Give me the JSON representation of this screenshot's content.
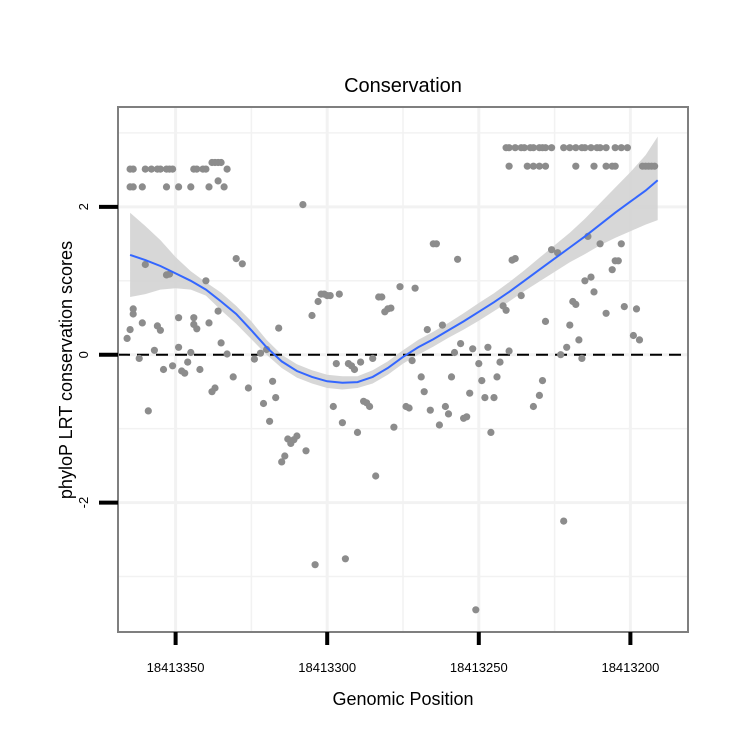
{
  "chart_data": {
    "type": "scatter",
    "title": "Conservation",
    "xlabel": "Genomic Position",
    "ylabel": "phyloP LRT conservation scores",
    "x_reversed": true,
    "xlim": [
      18413369,
      18413181
    ],
    "ylim": [
      -3.75,
      3.35
    ],
    "x_ticks": [
      18413350,
      18413300,
      18413250,
      18413200
    ],
    "x_tick_labels": [
      "18413350",
      "18413300",
      "18413250",
      "18413200"
    ],
    "y_ticks": [
      -2,
      0,
      2
    ],
    "y_tick_labels": [
      "-2",
      "0",
      "2"
    ],
    "grid": true,
    "reference_line": {
      "y": 0,
      "style": "dashed"
    },
    "colors": {
      "points": "#8c8c8c",
      "smooth_line": "#3366ff",
      "confidence_band": "#d3d3d3",
      "grid": "#f2f2f2",
      "panel_border": "#7f7f7f"
    },
    "points": [
      [
        18413365,
        2.27
      ],
      [
        18413365,
        2.51
      ],
      [
        18413364,
        2.27
      ],
      [
        18413364,
        2.51
      ],
      [
        18413361,
        2.27
      ],
      [
        18413360,
        2.51
      ],
      [
        18413358,
        2.51
      ],
      [
        18413356,
        2.51
      ],
      [
        18413355,
        2.51
      ],
      [
        18413353,
        2.51
      ],
      [
        18413352,
        2.51
      ],
      [
        18413351,
        2.51
      ],
      [
        18413353,
        2.27
      ],
      [
        18413349,
        2.27
      ],
      [
        18413345,
        2.27
      ],
      [
        18413344,
        2.51
      ],
      [
        18413343,
        2.51
      ],
      [
        18413341,
        2.51
      ],
      [
        18413340,
        2.51
      ],
      [
        18413339,
        2.27
      ],
      [
        18413338,
        2.6
      ],
      [
        18413337,
        2.6
      ],
      [
        18413336,
        2.6
      ],
      [
        18413335,
        2.6
      ],
      [
        18413333,
        2.51
      ],
      [
        18413336,
        2.35
      ],
      [
        18413334,
        2.27
      ],
      [
        18413366,
        0.22
      ],
      [
        18413365,
        0.34
      ],
      [
        18413364,
        0.55
      ],
      [
        18413364,
        0.62
      ],
      [
        18413362,
        -0.05
      ],
      [
        18413361,
        0.43
      ],
      [
        18413360,
        1.22
      ],
      [
        18413359,
        -0.76
      ],
      [
        18413357,
        0.06
      ],
      [
        18413356,
        0.39
      ],
      [
        18413355,
        0.33
      ],
      [
        18413354,
        -0.2
      ],
      [
        18413353,
        1.08
      ],
      [
        18413352,
        1.09
      ],
      [
        18413351,
        -0.15
      ],
      [
        18413349,
        0.1
      ],
      [
        18413349,
        0.5
      ],
      [
        18413348,
        -0.22
      ],
      [
        18413347,
        -0.25
      ],
      [
        18413346,
        -0.1
      ],
      [
        18413345,
        0.03
      ],
      [
        18413344,
        0.5
      ],
      [
        18413344,
        0.41
      ],
      [
        18413343,
        0.35
      ],
      [
        18413342,
        -0.2
      ],
      [
        18413340,
        1.0
      ],
      [
        18413339,
        0.43
      ],
      [
        18413338,
        -0.5
      ],
      [
        18413337,
        -0.45
      ],
      [
        18413336,
        0.59
      ],
      [
        18413335,
        0.16
      ],
      [
        18413333,
        0.01
      ],
      [
        18413331,
        -0.3
      ],
      [
        18413330,
        1.3
      ],
      [
        18413328,
        1.23
      ],
      [
        18413326,
        -0.45
      ],
      [
        18413324,
        -0.06
      ],
      [
        18413322,
        0.02
      ],
      [
        18413321,
        -0.66
      ],
      [
        18413320,
        0.07
      ],
      [
        18413318,
        -0.36
      ],
      [
        18413319,
        -0.9
      ],
      [
        18413317,
        -0.58
      ],
      [
        18413316,
        0.36
      ],
      [
        18413315,
        -1.45
      ],
      [
        18413314,
        -1.37
      ],
      [
        18413313,
        -1.14
      ],
      [
        18413312,
        -1.2
      ],
      [
        18413311,
        -1.15
      ],
      [
        18413310,
        -1.1
      ],
      [
        18413308,
        2.03
      ],
      [
        18413307,
        -1.3
      ],
      [
        18413305,
        0.53
      ],
      [
        18413304,
        -2.84
      ],
      [
        18413303,
        0.72
      ],
      [
        18413302,
        0.82
      ],
      [
        18413301,
        0.82
      ],
      [
        18413300,
        0.8
      ],
      [
        18413299,
        0.8
      ],
      [
        18413298,
        -0.7
      ],
      [
        18413297,
        -0.12
      ],
      [
        18413296,
        0.82
      ],
      [
        18413295,
        -0.92
      ],
      [
        18413294,
        -2.76
      ],
      [
        18413293,
        -0.12
      ],
      [
        18413292,
        -0.15
      ],
      [
        18413291,
        -0.2
      ],
      [
        18413290,
        -1.05
      ],
      [
        18413289,
        -0.1
      ],
      [
        18413288,
        -0.63
      ],
      [
        18413287,
        -0.65
      ],
      [
        18413286,
        -0.7
      ],
      [
        18413285,
        -0.05
      ],
      [
        18413284,
        -1.64
      ],
      [
        18413283,
        0.78
      ],
      [
        18413282,
        0.78
      ],
      [
        18413281,
        0.58
      ],
      [
        18413280,
        0.62
      ],
      [
        18413279,
        0.63
      ],
      [
        18413278,
        -0.98
      ],
      [
        18413276,
        0.92
      ],
      [
        18413274,
        -0.7
      ],
      [
        18413273,
        -0.72
      ],
      [
        18413272,
        -0.08
      ],
      [
        18413271,
        0.9
      ],
      [
        18413269,
        -0.3
      ],
      [
        18413268,
        -0.5
      ],
      [
        18413267,
        0.34
      ],
      [
        18413266,
        -0.75
      ],
      [
        18413265,
        1.5
      ],
      [
        18413264,
        1.5
      ],
      [
        18413263,
        -0.95
      ],
      [
        18413262,
        0.4
      ],
      [
        18413261,
        -0.7
      ],
      [
        18413260,
        -0.8
      ],
      [
        18413259,
        -0.3
      ],
      [
        18413258,
        0.03
      ],
      [
        18413257,
        1.29
      ],
      [
        18413256,
        0.15
      ],
      [
        18413255,
        -0.86
      ],
      [
        18413254,
        -0.84
      ],
      [
        18413253,
        -0.52
      ],
      [
        18413252,
        0.08
      ],
      [
        18413251,
        -3.45
      ],
      [
        18413250,
        -0.12
      ],
      [
        18413249,
        -0.35
      ],
      [
        18413248,
        -0.58
      ],
      [
        18413247,
        0.1
      ],
      [
        18413246,
        -1.05
      ],
      [
        18413245,
        -0.58
      ],
      [
        18413244,
        -0.3
      ],
      [
        18413243,
        -0.1
      ],
      [
        18413242,
        0.66
      ],
      [
        18413241,
        0.6
      ],
      [
        18413240,
        0.05
      ],
      [
        18413239,
        1.28
      ],
      [
        18413238,
        1.3
      ],
      [
        18413241,
        2.8
      ],
      [
        18413240,
        2.8
      ],
      [
        18413238,
        2.8
      ],
      [
        18413236,
        2.8
      ],
      [
        18413235,
        2.8
      ],
      [
        18413233,
        2.8
      ],
      [
        18413232,
        2.8
      ],
      [
        18413230,
        2.8
      ],
      [
        18413229,
        2.8
      ],
      [
        18413228,
        2.8
      ],
      [
        18413226,
        2.8
      ],
      [
        18413222,
        2.8
      ],
      [
        18413220,
        2.8
      ],
      [
        18413218,
        2.8
      ],
      [
        18413216,
        2.8
      ],
      [
        18413215,
        2.8
      ],
      [
        18413213,
        2.8
      ],
      [
        18413211,
        2.8
      ],
      [
        18413210,
        2.8
      ],
      [
        18413208,
        2.8
      ],
      [
        18413205,
        2.8
      ],
      [
        18413203,
        2.8
      ],
      [
        18413201,
        2.8
      ],
      [
        18413240,
        2.55
      ],
      [
        18413234,
        2.55
      ],
      [
        18413232,
        2.55
      ],
      [
        18413230,
        2.55
      ],
      [
        18413228,
        2.55
      ],
      [
        18413218,
        2.55
      ],
      [
        18413212,
        2.55
      ],
      [
        18413208,
        2.55
      ],
      [
        18413206,
        2.55
      ],
      [
        18413205,
        2.55
      ],
      [
        18413196,
        2.55
      ],
      [
        18413195,
        2.55
      ],
      [
        18413194,
        2.55
      ],
      [
        18413193,
        2.55
      ],
      [
        18413192,
        2.55
      ],
      [
        18413236,
        0.8
      ],
      [
        18413232,
        -0.7
      ],
      [
        18413230,
        -0.55
      ],
      [
        18413229,
        -0.35
      ],
      [
        18413228,
        0.45
      ],
      [
        18413226,
        1.42
      ],
      [
        18413224,
        1.38
      ],
      [
        18413223,
        0.0
      ],
      [
        18413222,
        -2.25
      ],
      [
        18413221,
        0.1
      ],
      [
        18413220,
        0.4
      ],
      [
        18413219,
        0.72
      ],
      [
        18413218,
        0.68
      ],
      [
        18413217,
        0.2
      ],
      [
        18413216,
        -0.05
      ],
      [
        18413215,
        1.0
      ],
      [
        18413214,
        1.6
      ],
      [
        18413213,
        1.05
      ],
      [
        18413212,
        0.85
      ],
      [
        18413210,
        1.5
      ],
      [
        18413208,
        0.56
      ],
      [
        18413206,
        1.15
      ],
      [
        18413205,
        1.27
      ],
      [
        18413204,
        1.27
      ],
      [
        18413203,
        1.5
      ],
      [
        18413202,
        0.65
      ],
      [
        18413199,
        0.26
      ],
      [
        18413198,
        0.62
      ],
      [
        18413197,
        0.2
      ]
    ],
    "smooth_fit": {
      "x": [
        18413365,
        18413360,
        18413355,
        18413350,
        18413345,
        18413340,
        18413335,
        18413330,
        18413325,
        18413320,
        18413315,
        18413310,
        18413305,
        18413300,
        18413295,
        18413290,
        18413285,
        18413280,
        18413275,
        18413270,
        18413265,
        18413260,
        18413255,
        18413250,
        18413245,
        18413240,
        18413235,
        18413230,
        18413225,
        18413220,
        18413215,
        18413210,
        18413205,
        18413200,
        18413195,
        18413191
      ],
      "y": [
        1.35,
        1.28,
        1.2,
        1.1,
        1.0,
        0.88,
        0.72,
        0.55,
        0.33,
        0.1,
        -0.09,
        -0.22,
        -0.3,
        -0.36,
        -0.38,
        -0.37,
        -0.3,
        -0.18,
        -0.03,
        0.1,
        0.21,
        0.33,
        0.45,
        0.58,
        0.71,
        0.85,
        1.0,
        1.15,
        1.3,
        1.45,
        1.6,
        1.76,
        1.92,
        2.07,
        2.22,
        2.36
      ],
      "lower": [
        0.78,
        0.82,
        0.88,
        0.9,
        0.88,
        0.8,
        0.6,
        0.42,
        0.21,
        0.0,
        -0.18,
        -0.31,
        -0.39,
        -0.45,
        -0.47,
        -0.45,
        -0.39,
        -0.27,
        -0.12,
        0.0,
        0.11,
        0.23,
        0.34,
        0.46,
        0.59,
        0.72,
        0.86,
        0.99,
        1.12,
        1.25,
        1.36,
        1.48,
        1.58,
        1.67,
        1.76,
        1.82
      ],
      "upper": [
        1.92,
        1.74,
        1.55,
        1.32,
        1.13,
        0.98,
        0.84,
        0.66,
        0.45,
        0.2,
        0.0,
        -0.13,
        -0.21,
        -0.27,
        -0.29,
        -0.29,
        -0.21,
        -0.09,
        0.06,
        0.2,
        0.31,
        0.43,
        0.56,
        0.7,
        0.83,
        0.98,
        1.14,
        1.31,
        1.48,
        1.65,
        1.84,
        2.05,
        2.26,
        2.47,
        2.7,
        2.95
      ]
    }
  }
}
